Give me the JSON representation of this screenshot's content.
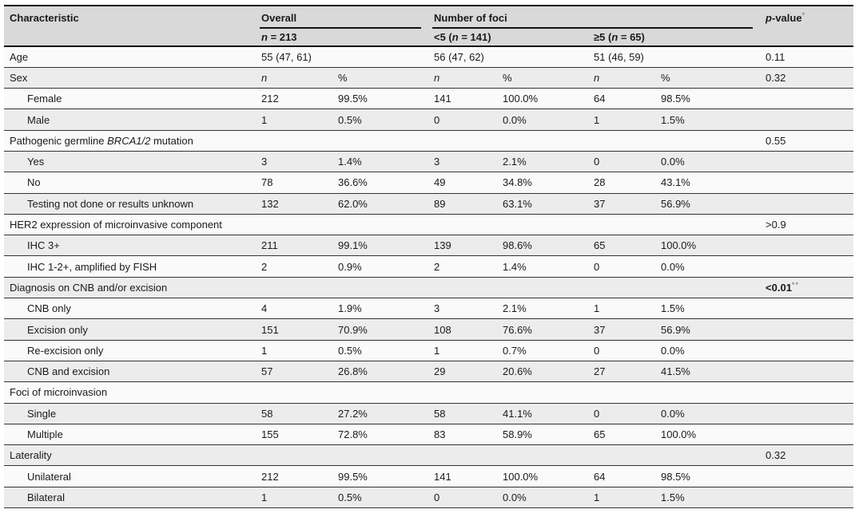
{
  "colors": {
    "header_bg": "#d9d9d9",
    "row_light": "#fafafa",
    "row_dark": "#ececec",
    "border_strong": "#111111",
    "border_row": "#333333"
  },
  "table": {
    "header": {
      "characteristic": "Characteristic",
      "overall": "Overall",
      "overall_sub": [
        {
          "t": "n",
          "italic": true
        },
        {
          "t": " = 213"
        }
      ],
      "foci": "Number of foci",
      "foci_sub1": [
        {
          "t": "<5 ("
        },
        {
          "t": "n",
          "italic": true
        },
        {
          "t": " = 141)"
        }
      ],
      "foci_sub2": [
        {
          "t": "≥5 ("
        },
        {
          "t": "n",
          "italic": true
        },
        {
          "t": " = 65)"
        }
      ],
      "pvalue": [
        {
          "t": "p",
          "italic": true
        },
        {
          "t": "-value"
        },
        {
          "t": "*",
          "sup": true
        }
      ]
    },
    "columns": [
      "characteristic",
      "overall_n",
      "overall_pct",
      "lt5_n",
      "lt5_pct",
      "ge5_n",
      "ge5_pct",
      "p_value"
    ],
    "rows": [
      {
        "label": "Age",
        "indent": false,
        "cells": [
          "55 (47, 61)",
          "",
          "56 (47, 62)",
          "",
          "51 (46, 59)",
          ""
        ],
        "p": [
          {
            "t": "0.11"
          }
        ]
      },
      {
        "label": "Sex",
        "indent": false,
        "cells": [
          {
            "t": "n",
            "italic": true
          },
          "%",
          {
            "t": "n",
            "italic": true
          },
          "%",
          {
            "t": "n",
            "italic": true
          },
          "%"
        ],
        "p": [
          {
            "t": "0.32"
          }
        ]
      },
      {
        "label": "Female",
        "indent": true,
        "cells": [
          "212",
          "99.5%",
          "141",
          "100.0%",
          "64",
          "98.5%"
        ],
        "p": []
      },
      {
        "label": "Male",
        "indent": true,
        "cells": [
          "1",
          "0.5%",
          "0",
          "0.0%",
          "1",
          "1.5%"
        ],
        "p": []
      },
      {
        "label": [
          {
            "t": "Pathogenic germline "
          },
          {
            "t": "BRCA1/2",
            "italic": true
          },
          {
            "t": " mutation"
          }
        ],
        "indent": false,
        "cells": [
          "",
          "",
          "",
          "",
          "",
          ""
        ],
        "p": [
          {
            "t": "0.55"
          }
        ]
      },
      {
        "label": "Yes",
        "indent": true,
        "cells": [
          "3",
          "1.4%",
          "3",
          "2.1%",
          "0",
          "0.0%"
        ],
        "p": []
      },
      {
        "label": "No",
        "indent": true,
        "cells": [
          "78",
          "36.6%",
          "49",
          "34.8%",
          "28",
          "43.1%"
        ],
        "p": []
      },
      {
        "label": "Testing not done or results unknown",
        "indent": true,
        "cells": [
          "132",
          "62.0%",
          "89",
          "63.1%",
          "37",
          "56.9%"
        ],
        "p": []
      },
      {
        "label": "HER2 expression of microinvasive component",
        "indent": false,
        "cells": [
          "",
          "",
          "",
          "",
          "",
          ""
        ],
        "p": [
          {
            "t": ">0.9"
          }
        ]
      },
      {
        "label": "IHC 3+",
        "indent": true,
        "cells": [
          "211",
          "99.1%",
          "139",
          "98.6%",
          "65",
          "100.0%"
        ],
        "p": []
      },
      {
        "label": "IHC 1-2+, amplified by FISH",
        "indent": true,
        "cells": [
          "2",
          "0.9%",
          "2",
          "1.4%",
          "0",
          "0.0%"
        ],
        "p": []
      },
      {
        "label": "Diagnosis on CNB and/or excision",
        "indent": false,
        "cells": [
          "",
          "",
          "",
          "",
          "",
          ""
        ],
        "p": [
          {
            "t": "<0.01",
            "bold": true
          },
          {
            "t": "**",
            "sup": true
          }
        ]
      },
      {
        "label": "CNB only",
        "indent": true,
        "cells": [
          "4",
          "1.9%",
          "3",
          "2.1%",
          "1",
          "1.5%"
        ],
        "p": []
      },
      {
        "label": "Excision only",
        "indent": true,
        "cells": [
          "151",
          "70.9%",
          "108",
          "76.6%",
          "37",
          "56.9%"
        ],
        "p": []
      },
      {
        "label": "Re-excision only",
        "indent": true,
        "cells": [
          "1",
          "0.5%",
          "1",
          "0.7%",
          "0",
          "0.0%"
        ],
        "p": []
      },
      {
        "label": "CNB and excision",
        "indent": true,
        "cells": [
          "57",
          "26.8%",
          "29",
          "20.6%",
          "27",
          "41.5%"
        ],
        "p": []
      },
      {
        "label": "Foci of microinvasion",
        "indent": false,
        "cells": [
          "",
          "",
          "",
          "",
          "",
          ""
        ],
        "p": []
      },
      {
        "label": "Single",
        "indent": true,
        "cells": [
          "58",
          "27.2%",
          "58",
          "41.1%",
          "0",
          "0.0%"
        ],
        "p": []
      },
      {
        "label": "Multiple",
        "indent": true,
        "cells": [
          "155",
          "72.8%",
          "83",
          "58.9%",
          "65",
          "100.0%"
        ],
        "p": []
      },
      {
        "label": "Laterality",
        "indent": false,
        "cells": [
          "",
          "",
          "",
          "",
          "",
          ""
        ],
        "p": [
          {
            "t": "0.32"
          }
        ]
      },
      {
        "label": "Unilateral",
        "indent": true,
        "cells": [
          "212",
          "99.5%",
          "141",
          "100.0%",
          "64",
          "98.5%"
        ],
        "p": []
      },
      {
        "label": "Bilateral",
        "indent": true,
        "cells": [
          "1",
          "0.5%",
          "0",
          "0.0%",
          "1",
          "1.5%"
        ],
        "p": []
      }
    ]
  }
}
